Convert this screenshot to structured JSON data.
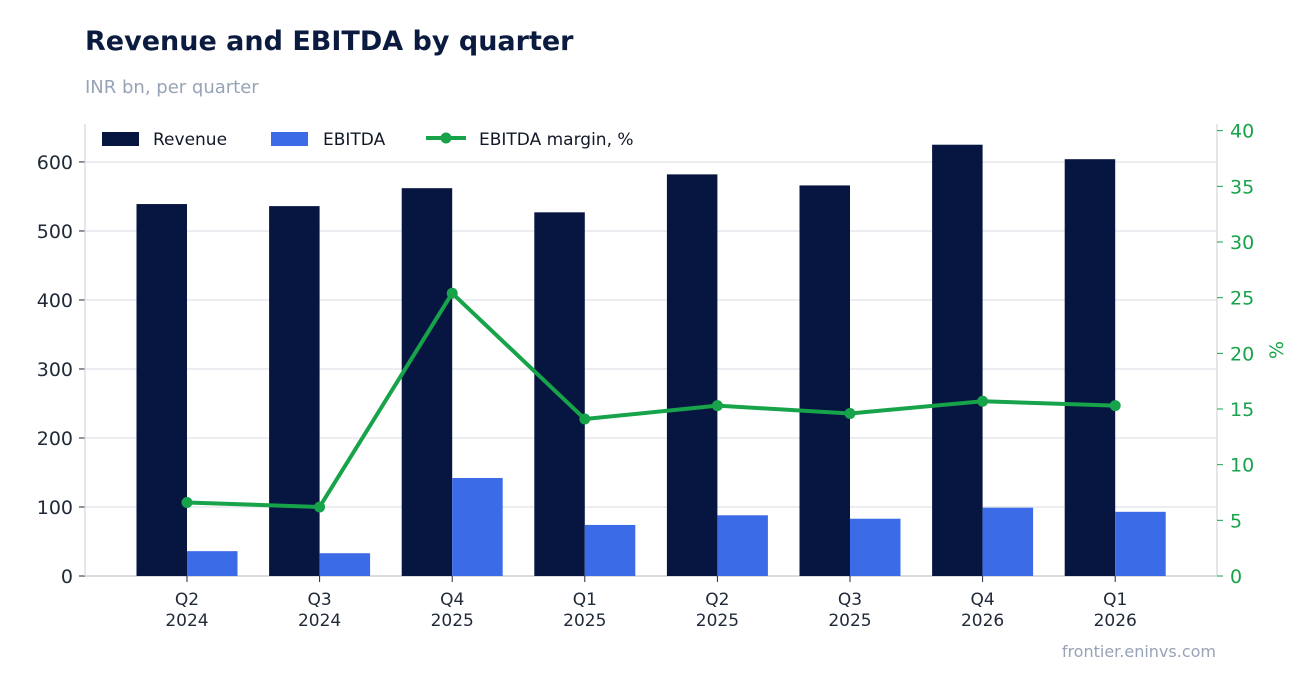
{
  "header": {
    "title": "Revenue and EBITDA by quarter",
    "subtitle": "INR bn, per quarter"
  },
  "footer": {
    "source": "frontier.eninvs.com"
  },
  "colors": {
    "revenue": "#061640",
    "ebitda": "#3b6be6",
    "margin": "#16a34a",
    "grid": "#e5e7eb"
  },
  "chart_data": {
    "type": "bar",
    "categories": [
      [
        "Q2",
        "2024"
      ],
      [
        "Q3",
        "2024"
      ],
      [
        "Q4",
        "2025"
      ],
      [
        "Q1",
        "2025"
      ],
      [
        "Q2",
        "2025"
      ],
      [
        "Q3",
        "2025"
      ],
      [
        "Q4",
        "2026"
      ],
      [
        "Q1",
        "2026"
      ]
    ],
    "series": [
      {
        "name": "Revenue",
        "type": "bar",
        "axis": "left",
        "values": [
          539,
          536,
          562,
          527,
          582,
          566,
          625,
          604
        ]
      },
      {
        "name": "EBITDA",
        "type": "bar",
        "axis": "left",
        "values": [
          36,
          33,
          142,
          74,
          88,
          83,
          99,
          93
        ]
      },
      {
        "name": "EBITDA margin, %",
        "type": "line",
        "axis": "right",
        "values": [
          6.6,
          6.2,
          25.4,
          14.1,
          15.3,
          14.6,
          15.7,
          15.3
        ]
      }
    ],
    "y_left": {
      "label": "",
      "ylim": [
        0,
        655
      ],
      "ticks": [
        0,
        100,
        200,
        300,
        400,
        500,
        600
      ]
    },
    "y_right": {
      "label": "%",
      "ylim": [
        0,
        40.6
      ],
      "ticks": [
        0,
        5,
        10,
        15,
        20,
        25,
        30,
        35,
        40
      ]
    },
    "grid": true,
    "legend": "top-left"
  }
}
